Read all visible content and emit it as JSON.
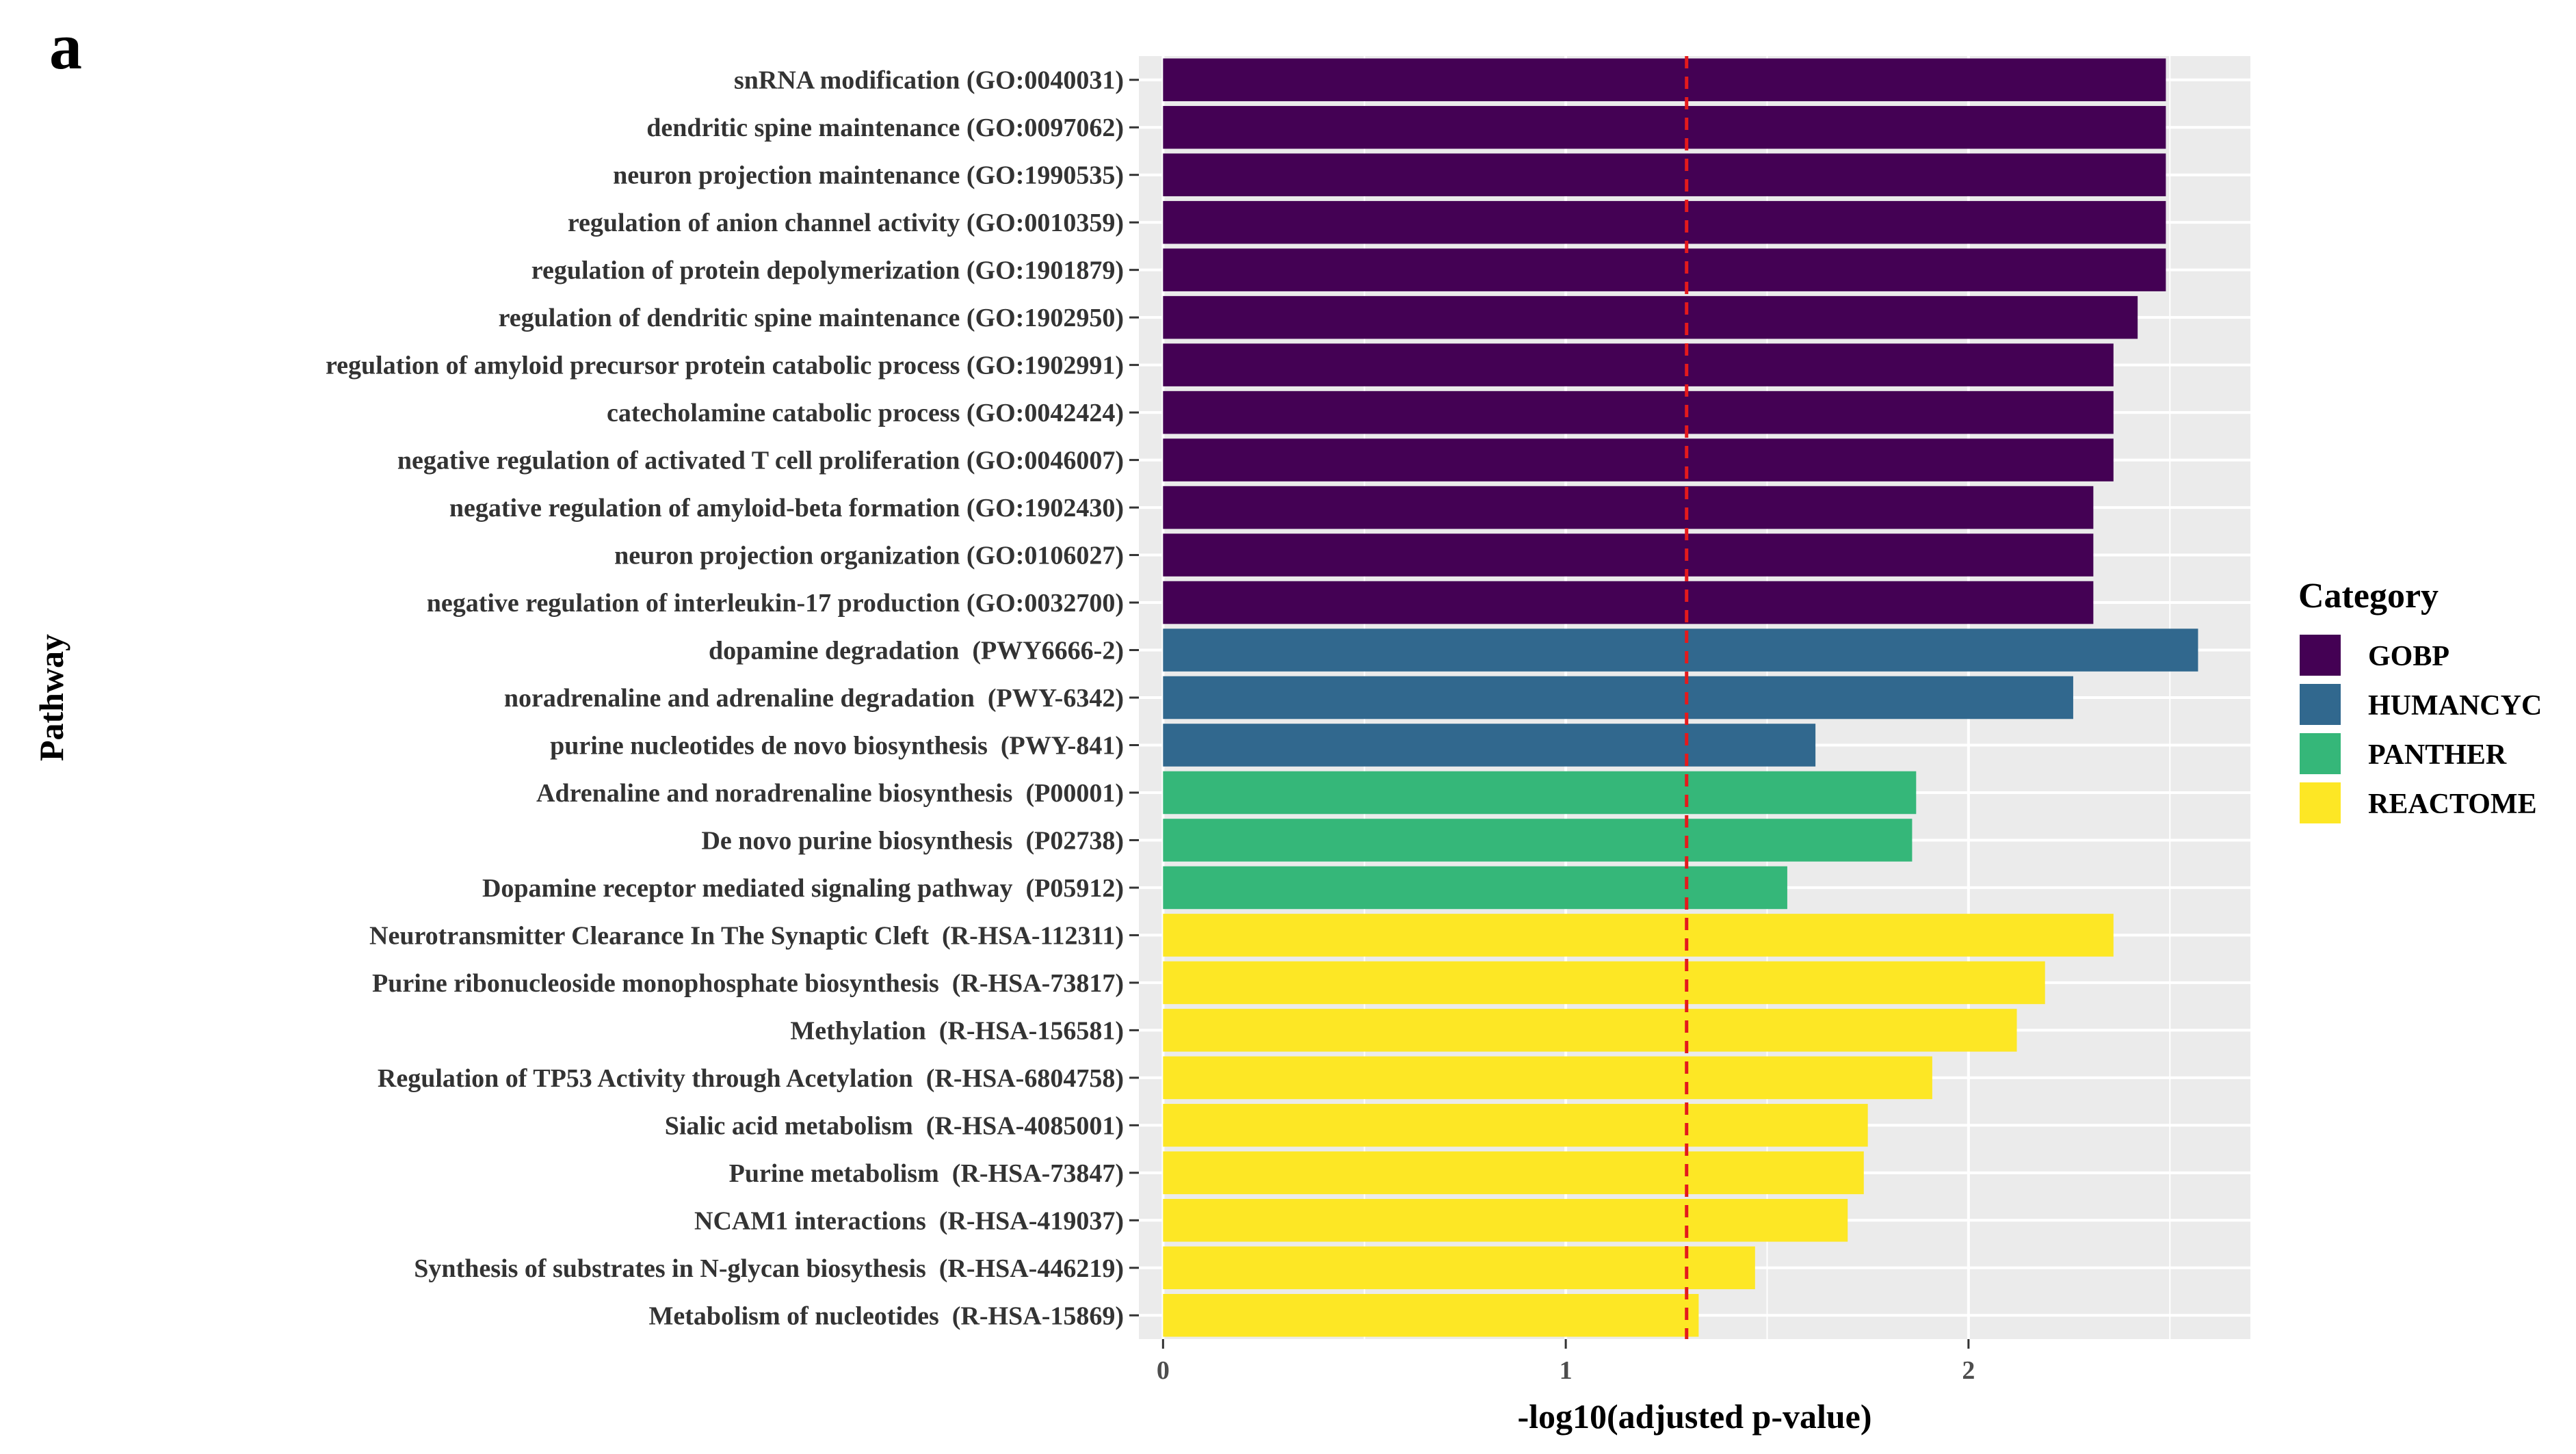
{
  "panel_label": "a",
  "chart_data": {
    "type": "bar",
    "orientation": "horizontal",
    "title": "",
    "xlabel": "-log10(adjusted p-value)",
    "ylabel": "Pathway",
    "xlim": [
      -0.06,
      2.7
    ],
    "xticks": [
      0,
      1,
      2
    ],
    "grid": true,
    "threshold_line": {
      "value": 1.3,
      "color": "#e41a1c",
      "style": "dashed"
    },
    "legend": {
      "title": "Category",
      "position": "right",
      "entries": [
        {
          "label": "GOBP",
          "color": "#440154"
        },
        {
          "label": "HUMANCYC",
          "color": "#31688e"
        },
        {
          "label": "PANTHER",
          "color": "#35b779"
        },
        {
          "label": "REACTOME",
          "color": "#fde725"
        }
      ]
    },
    "bars": [
      {
        "label": "snRNA modification (GO:0040031)",
        "value": 2.49,
        "category": "GOBP"
      },
      {
        "label": "dendritic spine maintenance (GO:0097062)",
        "value": 2.49,
        "category": "GOBP"
      },
      {
        "label": "neuron projection maintenance (GO:1990535)",
        "value": 2.49,
        "category": "GOBP"
      },
      {
        "label": "regulation of anion channel activity (GO:0010359)",
        "value": 2.49,
        "category": "GOBP"
      },
      {
        "label": "regulation of protein depolymerization (GO:1901879)",
        "value": 2.49,
        "category": "GOBP"
      },
      {
        "label": "regulation of dendritic spine maintenance (GO:1902950)",
        "value": 2.42,
        "category": "GOBP"
      },
      {
        "label": "regulation of amyloid precursor protein catabolic process (GO:1902991)",
        "value": 2.36,
        "category": "GOBP"
      },
      {
        "label": "catecholamine catabolic process (GO:0042424)",
        "value": 2.36,
        "category": "GOBP"
      },
      {
        "label": "negative regulation of activated T cell proliferation (GO:0046007)",
        "value": 2.36,
        "category": "GOBP"
      },
      {
        "label": "negative regulation of amyloid-beta formation (GO:1902430)",
        "value": 2.31,
        "category": "GOBP"
      },
      {
        "label": "neuron projection organization (GO:0106027)",
        "value": 2.31,
        "category": "GOBP"
      },
      {
        "label": "negative regulation of interleukin-17 production (GO:0032700)",
        "value": 2.31,
        "category": "GOBP"
      },
      {
        "label": "dopamine degradation  (PWY6666-2)",
        "value": 2.57,
        "category": "HUMANCYC"
      },
      {
        "label": "noradrenaline and adrenaline degradation  (PWY-6342)",
        "value": 2.26,
        "category": "HUMANCYC"
      },
      {
        "label": "purine nucleotides de novo biosynthesis  (PWY-841)",
        "value": 1.62,
        "category": "HUMANCYC"
      },
      {
        "label": "Adrenaline and noradrenaline biosynthesis  (P00001)",
        "value": 1.87,
        "category": "PANTHER"
      },
      {
        "label": "De novo purine biosynthesis  (P02738)",
        "value": 1.86,
        "category": "PANTHER"
      },
      {
        "label": "Dopamine receptor mediated signaling pathway  (P05912)",
        "value": 1.55,
        "category": "PANTHER"
      },
      {
        "label": "Neurotransmitter Clearance In The Synaptic Cleft  (R-HSA-112311)",
        "value": 2.36,
        "category": "REACTOME"
      },
      {
        "label": "Purine ribonucleoside monophosphate biosynthesis  (R-HSA-73817)",
        "value": 2.19,
        "category": "REACTOME"
      },
      {
        "label": "Methylation  (R-HSA-156581)",
        "value": 2.12,
        "category": "REACTOME"
      },
      {
        "label": "Regulation of TP53 Activity through Acetylation  (R-HSA-6804758)",
        "value": 1.91,
        "category": "REACTOME"
      },
      {
        "label": "Sialic acid metabolism  (R-HSA-4085001)",
        "value": 1.75,
        "category": "REACTOME"
      },
      {
        "label": "Purine metabolism  (R-HSA-73847)",
        "value": 1.74,
        "category": "REACTOME"
      },
      {
        "label": "NCAM1 interactions  (R-HSA-419037)",
        "value": 1.7,
        "category": "REACTOME"
      },
      {
        "label": "Synthesis of substrates in N-glycan biosythesis  (R-HSA-446219)",
        "value": 1.47,
        "category": "REACTOME"
      },
      {
        "label": "Metabolism of nucleotides  (R-HSA-15869)",
        "value": 1.33,
        "category": "REACTOME"
      }
    ]
  }
}
